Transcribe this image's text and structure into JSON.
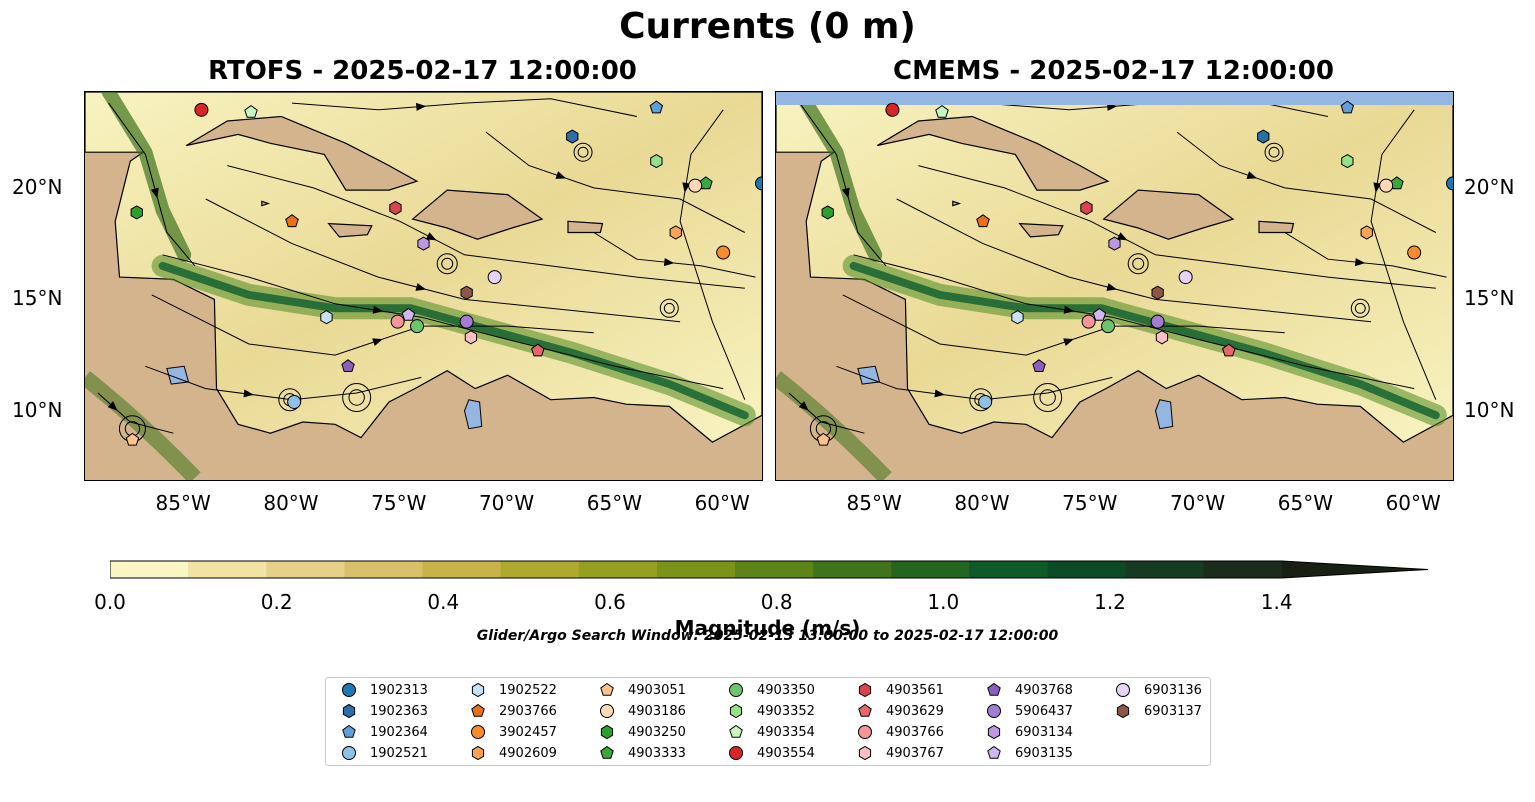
{
  "title": "Currents (0 m)",
  "panels": [
    {
      "id": "left",
      "title": "RTOFS - 2025-02-17 12:00:00"
    },
    {
      "id": "right",
      "title": "CMEMS - 2025-02-17 12:00:00"
    }
  ],
  "map": {
    "lon_range": [
      -89.6,
      -58.2
    ],
    "lat_range": [
      6.9,
      24.3
    ],
    "lat_ticks": [
      "10°N",
      "15°N",
      "20°N"
    ],
    "lon_ticks": [
      "85°W",
      "80°W",
      "75°W",
      "70°W",
      "65°W",
      "60°W"
    ],
    "colors": {
      "land": "#d4b48c",
      "water_low": "#f8f3c0",
      "water_high": "#0e5e2e",
      "lakes": "#94b6e0",
      "coast": "#000000"
    }
  },
  "colorbar": {
    "label": "Magnitude (m/s)",
    "ticks": [
      "0.0",
      "0.2",
      "0.4",
      "0.6",
      "0.8",
      "1.0",
      "1.2",
      "1.4"
    ],
    "colors": [
      "#faf5c4",
      "#f0e3a4",
      "#e6d18a",
      "#d9c06a",
      "#c8b24a",
      "#aeaa30",
      "#959f22",
      "#7a9318",
      "#5c8418",
      "#3f741c",
      "#24661f",
      "#0f5a28",
      "#0c4a26",
      "#163a22",
      "#1c2c1c",
      "#182014"
    ]
  },
  "search_window": "Glider/Argo Search Window: 2025-02-13 13:00:00 to 2025-02-17 12:00:00",
  "legend": [
    {
      "id": "1902313",
      "marker": "circle",
      "color": "#1f77b4"
    },
    {
      "id": "1902363",
      "marker": "hexagon",
      "color": "#2b6fa8"
    },
    {
      "id": "1902364",
      "marker": "pentagon",
      "color": "#5f9fd6"
    },
    {
      "id": "1902521",
      "marker": "circle",
      "color": "#8ec1e8"
    },
    {
      "id": "1902522",
      "marker": "hexagon",
      "color": "#c6e0f5"
    },
    {
      "id": "2903766",
      "marker": "pentagon",
      "color": "#e8711a"
    },
    {
      "id": "3902457",
      "marker": "circle",
      "color": "#f58c2e"
    },
    {
      "id": "4902609",
      "marker": "hexagon",
      "color": "#f9a455"
    },
    {
      "id": "4903051",
      "marker": "pentagon",
      "color": "#fcc48c"
    },
    {
      "id": "4903186",
      "marker": "circle",
      "color": "#ffd9b5"
    },
    {
      "id": "4903250",
      "marker": "hexagon",
      "color": "#2ca02c"
    },
    {
      "id": "4903333",
      "marker": "pentagon",
      "color": "#3aa83a"
    },
    {
      "id": "4903350",
      "marker": "circle",
      "color": "#6cc46c"
    },
    {
      "id": "4903352",
      "marker": "hexagon",
      "color": "#98df8a"
    },
    {
      "id": "4903354",
      "marker": "pentagon",
      "color": "#c9f5c0"
    },
    {
      "id": "4903554",
      "marker": "circle",
      "color": "#d62728"
    },
    {
      "id": "4903561",
      "marker": "hexagon",
      "color": "#d8454c"
    },
    {
      "id": "4903629",
      "marker": "pentagon",
      "color": "#e8676b"
    },
    {
      "id": "4903766",
      "marker": "circle",
      "color": "#f4959a"
    },
    {
      "id": "4903767",
      "marker": "hexagon",
      "color": "#fbc0c6"
    },
    {
      "id": "4903768",
      "marker": "pentagon",
      "color": "#8c5fbf"
    },
    {
      "id": "5906437",
      "marker": "circle",
      "color": "#a47dd0"
    },
    {
      "id": "6903134",
      "marker": "hexagon",
      "color": "#bb98e0"
    },
    {
      "id": "6903135",
      "marker": "pentagon",
      "color": "#d2b6ef"
    },
    {
      "id": "6903136",
      "marker": "circle",
      "color": "#e7d3f8"
    },
    {
      "id": "6903137",
      "marker": "hexagon",
      "color": "#8c564b"
    }
  ],
  "floats": [
    {
      "id": "4903554",
      "lon": -84.2,
      "lat": 23.5
    },
    {
      "id": "4903354",
      "lon": -81.9,
      "lat": 23.4
    },
    {
      "id": "1902364",
      "lon": -63.1,
      "lat": 23.6
    },
    {
      "id": "1902363",
      "lon": -67.0,
      "lat": 22.3
    },
    {
      "id": "4903352",
      "lon": -63.1,
      "lat": 21.2
    },
    {
      "id": "4903333",
      "lon": -60.8,
      "lat": 20.2
    },
    {
      "id": "4903186",
      "lon": -61.3,
      "lat": 20.1
    },
    {
      "id": "1902313",
      "lon": -58.2,
      "lat": 20.2
    },
    {
      "id": "4903250",
      "lon": -87.2,
      "lat": 18.9
    },
    {
      "id": "4903561",
      "lon": -75.2,
      "lat": 19.1
    },
    {
      "id": "2903766",
      "lon": -80.0,
      "lat": 18.5
    },
    {
      "id": "4902609",
      "lon": -62.2,
      "lat": 18.0
    },
    {
      "id": "3902457",
      "lon": -60.0,
      "lat": 17.1
    },
    {
      "id": "6903134",
      "lon": -73.9,
      "lat": 17.5
    },
    {
      "id": "6903136",
      "lon": -70.6,
      "lat": 16.0
    },
    {
      "id": "6903137",
      "lon": -71.9,
      "lat": 15.3
    },
    {
      "id": "1902522",
      "lon": -78.4,
      "lat": 14.2
    },
    {
      "id": "6903135",
      "lon": -74.6,
      "lat": 14.3
    },
    {
      "id": "4903766",
      "lon": -75.1,
      "lat": 14.0
    },
    {
      "id": "4903350",
      "lon": -74.2,
      "lat": 13.8
    },
    {
      "id": "5906437",
      "lon": -71.9,
      "lat": 14.0
    },
    {
      "id": "4903767",
      "lon": -71.7,
      "lat": 13.3
    },
    {
      "id": "4903629",
      "lon": -68.6,
      "lat": 12.7
    },
    {
      "id": "4903768",
      "lon": -77.4,
      "lat": 12.0
    },
    {
      "id": "1902521",
      "lon": -79.9,
      "lat": 10.4
    },
    {
      "id": "4903051",
      "lon": -87.4,
      "lat": 8.7
    }
  ]
}
